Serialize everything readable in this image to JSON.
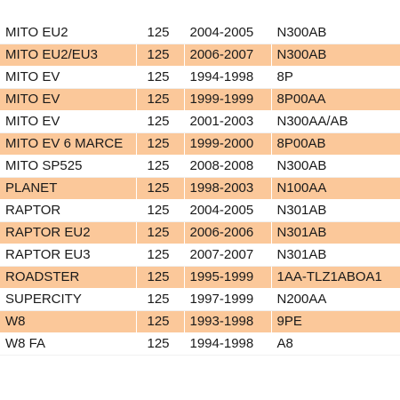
{
  "colors": {
    "row_highlight": "#fbc89a",
    "row_plain": "#ffffff",
    "text": "#1a1a1a"
  },
  "rows": [
    {
      "model": "MITO EU2",
      "cc": "125",
      "years": "2004-2005",
      "code": "N300AB",
      "highlight": false
    },
    {
      "model": "MITO EU2/EU3",
      "cc": "125",
      "years": "2006-2007",
      "code": "N300AB",
      "highlight": true
    },
    {
      "model": "MITO EV",
      "cc": "125",
      "years": "1994-1998",
      "code": "8P",
      "highlight": false
    },
    {
      "model": "MITO EV",
      "cc": "125",
      "years": "1999-1999",
      "code": "8P00AA",
      "highlight": true
    },
    {
      "model": "MITO EV",
      "cc": "125",
      "years": "2001-2003",
      "code": "N300AA/AB",
      "highlight": false
    },
    {
      "model": "MITO EV 6 MARCE",
      "cc": "125",
      "years": "1999-2000",
      "code": "8P00AB",
      "highlight": true
    },
    {
      "model": "MITO SP525",
      "cc": "125",
      "years": "2008-2008",
      "code": "N300AB",
      "highlight": false
    },
    {
      "model": "PLANET",
      "cc": "125",
      "years": "1998-2003",
      "code": "N100AA",
      "highlight": true
    },
    {
      "model": "RAPTOR",
      "cc": "125",
      "years": "2004-2005",
      "code": "N301AB",
      "highlight": false
    },
    {
      "model": "RAPTOR EU2",
      "cc": "125",
      "years": "2006-2006",
      "code": "N301AB",
      "highlight": true
    },
    {
      "model": "RAPTOR EU3",
      "cc": "125",
      "years": "2007-2007",
      "code": "N301AB",
      "highlight": false
    },
    {
      "model": "ROADSTER",
      "cc": "125",
      "years": "1995-1999",
      "code": "1AA-TLZ1ABOA1",
      "highlight": true
    },
    {
      "model": "SUPERCITY",
      "cc": "125",
      "years": "1997-1999",
      "code": "N200AA",
      "highlight": false
    },
    {
      "model": "W8",
      "cc": "125",
      "years": "1993-1998",
      "code": "9PE",
      "highlight": true
    },
    {
      "model": "W8 FA",
      "cc": "125",
      "years": "1994-1998",
      "code": "A8",
      "highlight": false
    }
  ]
}
